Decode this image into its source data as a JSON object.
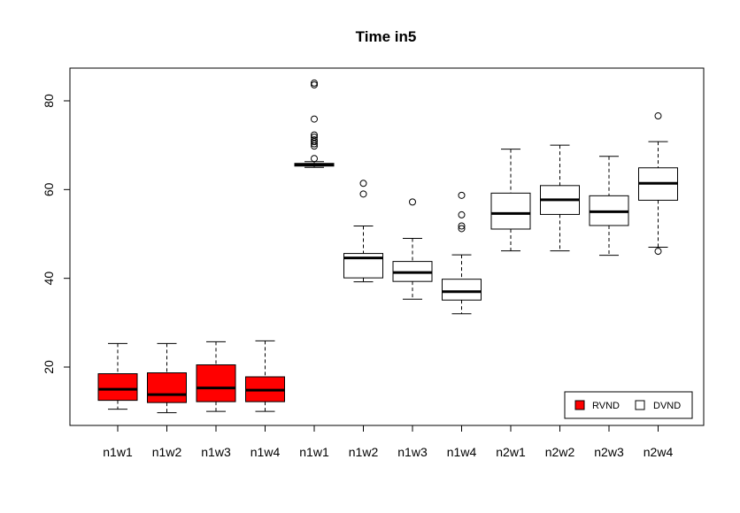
{
  "chart_data": {
    "type": "box",
    "title": "Time in5",
    "xlabel": "",
    "ylabel": "",
    "ylim": [
      6,
      87
    ],
    "yticks": [
      20,
      40,
      60,
      80
    ],
    "categories": [
      "n1w1",
      "n1w2",
      "n1w3",
      "n1w4",
      "n1w1",
      "n1w2",
      "n1w3",
      "n1w4",
      "n2w1",
      "n2w2",
      "n2w3",
      "n2w4"
    ],
    "series": [
      {
        "name": "RVND",
        "color": "#ff0000",
        "boxes": [
          {
            "category_index": 0,
            "min": 10.5,
            "q1": 12.5,
            "median": 15.0,
            "q3": 18.5,
            "max": 25.3,
            "outliers": []
          },
          {
            "category_index": 1,
            "min": 9.7,
            "q1": 12.0,
            "median": 13.8,
            "q3": 18.7,
            "max": 25.3,
            "outliers": []
          },
          {
            "category_index": 2,
            "min": 10.0,
            "q1": 12.2,
            "median": 15.3,
            "q3": 20.5,
            "max": 25.7,
            "outliers": []
          },
          {
            "category_index": 3,
            "min": 10.0,
            "q1": 12.2,
            "median": 14.8,
            "q3": 17.8,
            "max": 25.9,
            "outliers": []
          }
        ]
      },
      {
        "name": "DVND",
        "color": "#ffffff",
        "boxes": [
          {
            "category_index": 4,
            "min": 65.0,
            "q1": 65.3,
            "median": 65.6,
            "q3": 65.9,
            "max": 66.3,
            "outliers": [
              67.0,
              69.8,
              70.3,
              70.8,
              71.2,
              71.8,
              72.3,
              75.9,
              83.6,
              84.0
            ]
          },
          {
            "category_index": 5,
            "min": 39.2,
            "q1": 40.1,
            "median": 44.6,
            "q3": 45.6,
            "max": 51.8,
            "outliers": [
              59.0,
              61.4
            ]
          },
          {
            "category_index": 6,
            "min": 35.3,
            "q1": 39.3,
            "median": 41.3,
            "q3": 43.8,
            "max": 49.0,
            "outliers": [
              57.2
            ]
          },
          {
            "category_index": 7,
            "min": 32.0,
            "q1": 35.1,
            "median": 37.0,
            "q3": 39.8,
            "max": 45.3,
            "outliers": [
              51.2,
              51.8,
              54.3,
              58.7
            ]
          },
          {
            "category_index": 8,
            "min": 46.2,
            "q1": 51.1,
            "median": 54.6,
            "q3": 59.2,
            "max": 69.1,
            "outliers": []
          },
          {
            "category_index": 9,
            "min": 46.2,
            "q1": 54.4,
            "median": 57.7,
            "q3": 60.9,
            "max": 70.0,
            "outliers": []
          },
          {
            "category_index": 10,
            "min": 45.2,
            "q1": 51.9,
            "median": 55.0,
            "q3": 58.6,
            "max": 67.5,
            "outliers": []
          },
          {
            "category_index": 11,
            "min": 47.0,
            "q1": 57.6,
            "median": 61.4,
            "q3": 64.9,
            "max": 70.8,
            "outliers": [
              46.1,
              76.6
            ]
          }
        ]
      }
    ],
    "legend": {
      "position": "bottom-right",
      "items": [
        {
          "label": "RVND",
          "color": "#ff0000"
        },
        {
          "label": "DVND",
          "color": "#ffffff"
        }
      ]
    },
    "grid": false
  }
}
